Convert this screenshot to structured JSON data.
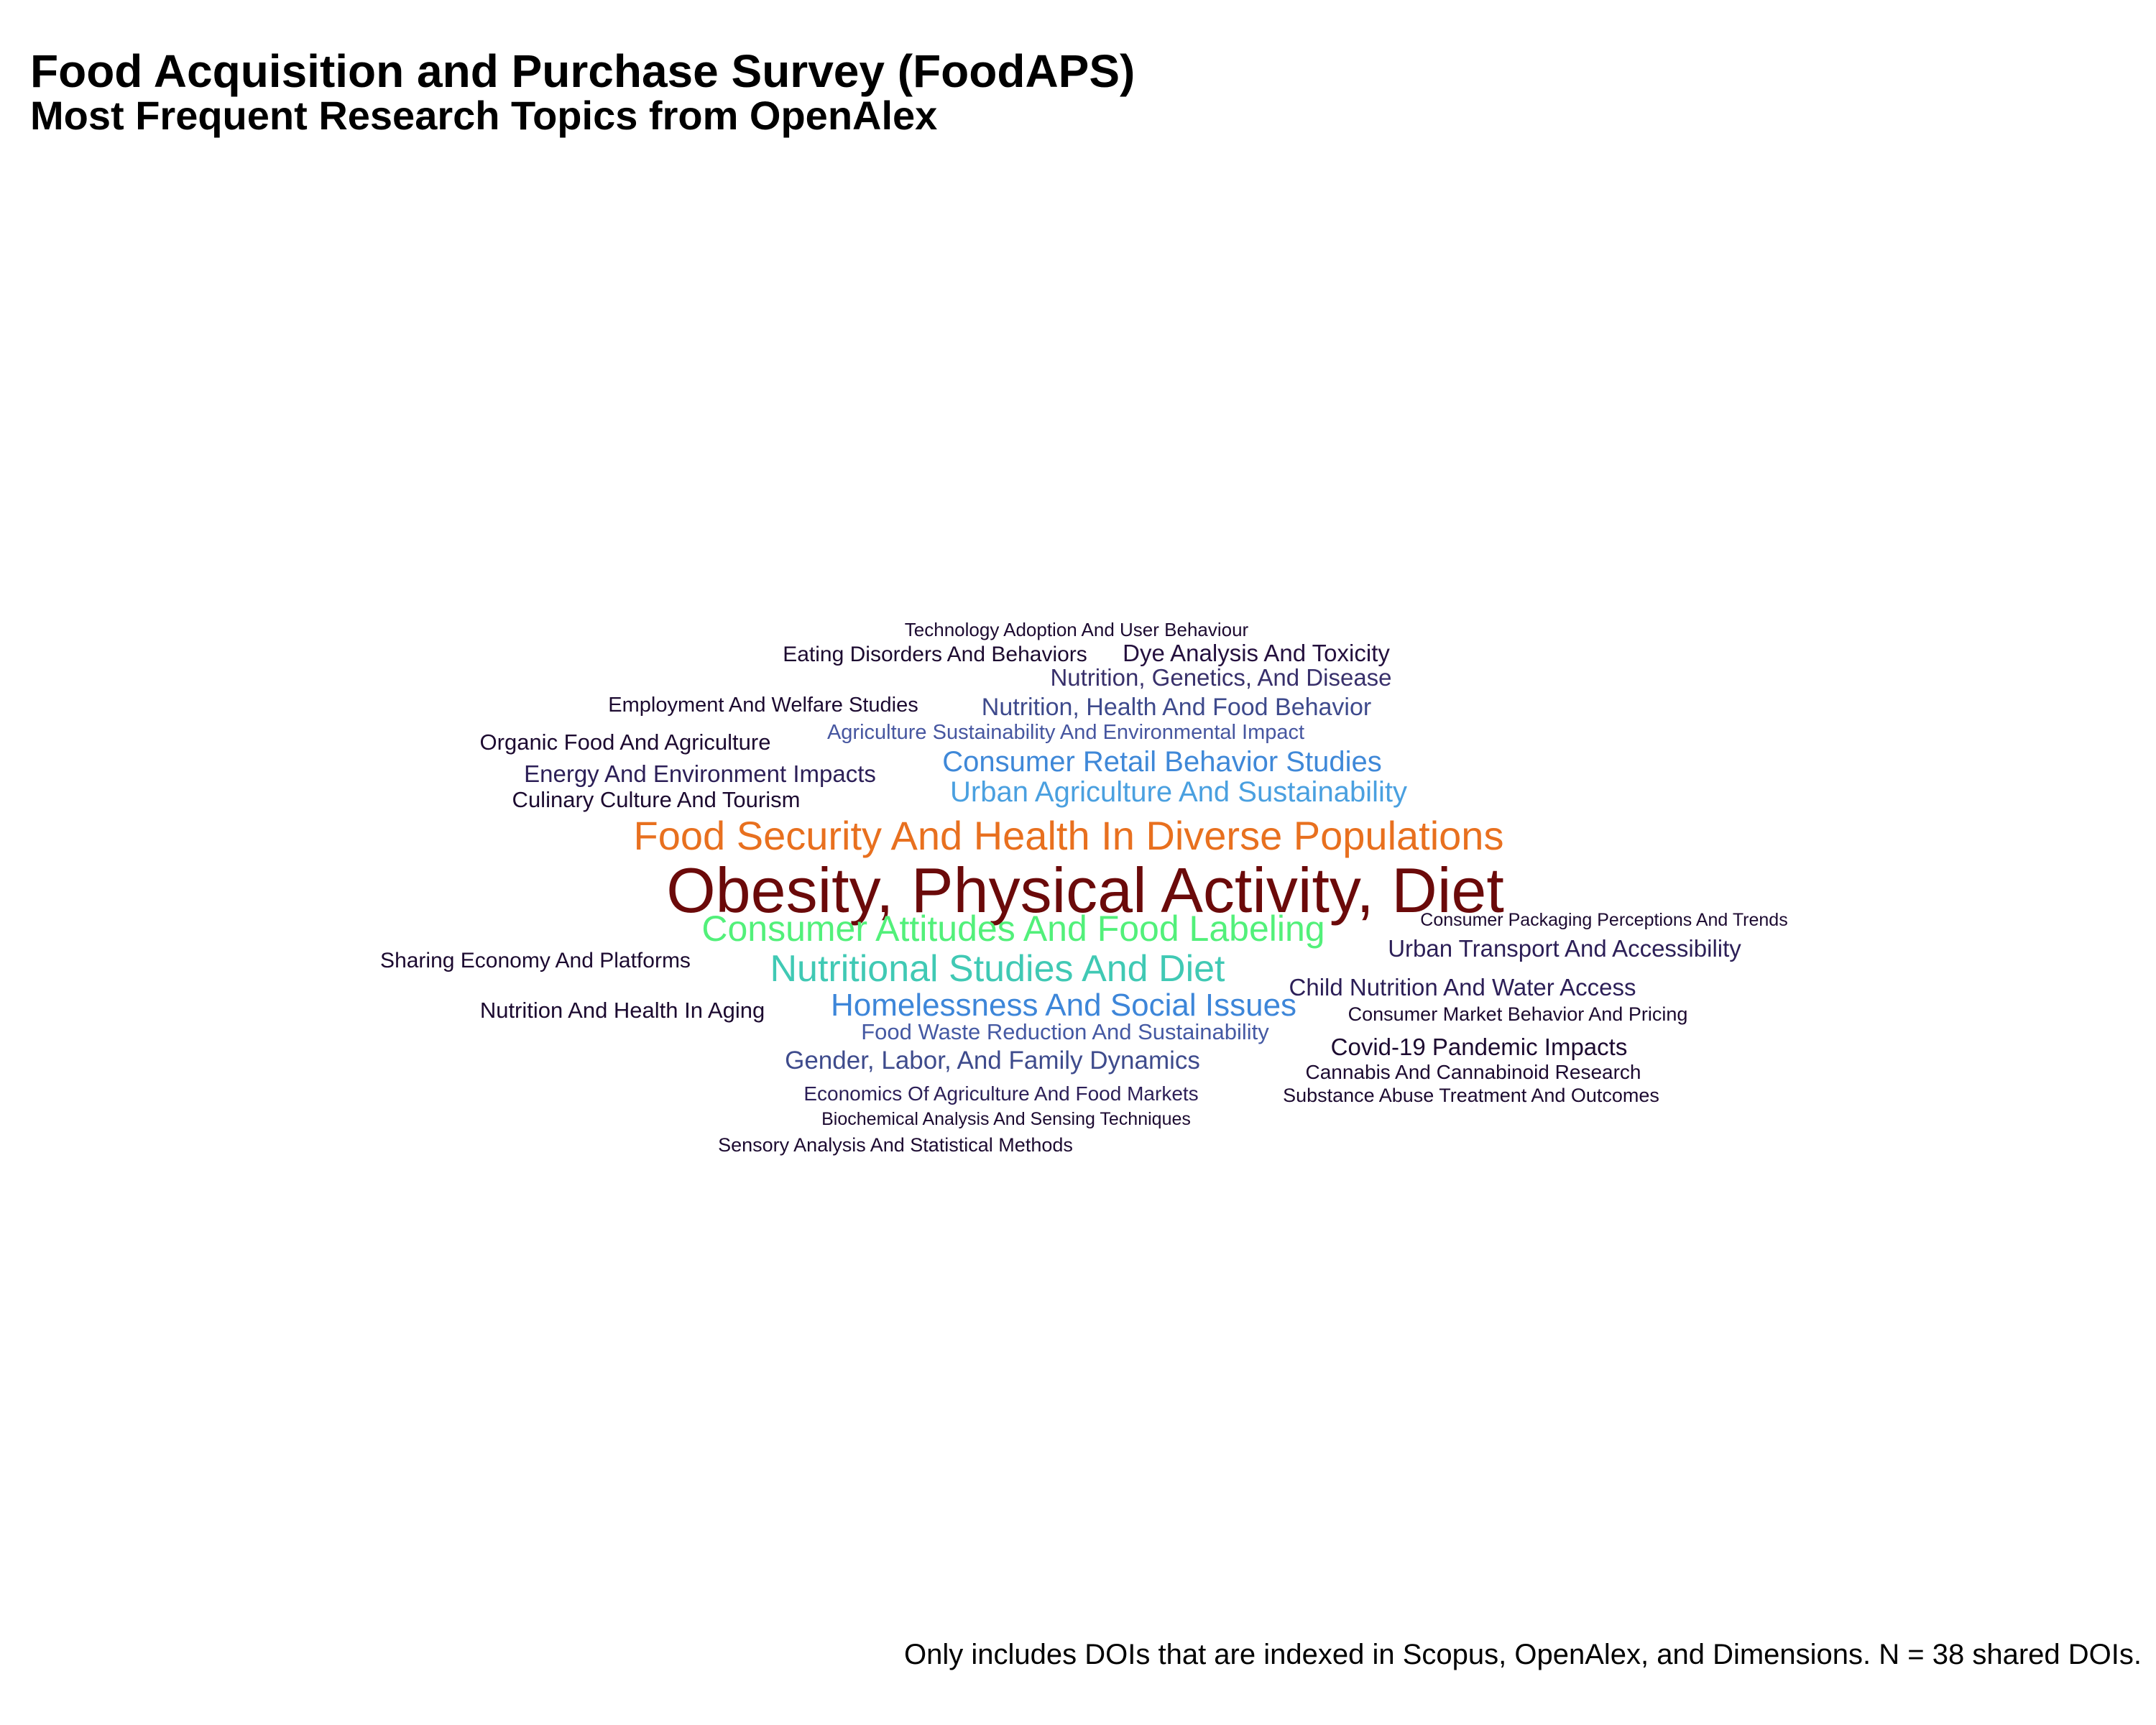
{
  "title": "Food Acquisition and Purchase Survey (FoodAPS)",
  "subtitle": "Most Frequent Research Topics from OpenAlex",
  "caption": "Only includes DOIs that are indexed in Scopus, OpenAlex, and Dimensions. N = 38 shared DOIs.",
  "chart_data": {
    "type": "wordcloud",
    "title": "Food Acquisition and Purchase Survey (FoodAPS)",
    "subtitle": "Most Frequent Research Topics from OpenAlex",
    "words": [
      {
        "text": "Obesity, Physical Activity, Diet",
        "weight": 10,
        "color": "#6b0a0a"
      },
      {
        "text": "Food Security And Health In Diverse Populations",
        "weight": 6,
        "color": "#e8701f"
      },
      {
        "text": "Consumer Attitudes And Food Labeling",
        "weight": 5,
        "color": "#52f07a"
      },
      {
        "text": "Nutritional Studies And Diet",
        "weight": 5,
        "color": "#40c9b4"
      },
      {
        "text": "Homelessness And Social Issues",
        "weight": 4,
        "color": "#3d86d9"
      },
      {
        "text": "Consumer Retail Behavior Studies",
        "weight": 4,
        "color": "#3f88d8"
      },
      {
        "text": "Urban Agriculture And Sustainability",
        "weight": 4,
        "color": "#4aa0e0"
      },
      {
        "text": "Nutrition, Health And Food Behavior",
        "weight": 3,
        "color": "#3e4a8c"
      },
      {
        "text": "Nutrition, Genetics, And Disease",
        "weight": 3,
        "color": "#38306b"
      },
      {
        "text": "Gender, Labor, And Family Dynamics",
        "weight": 3,
        "color": "#3e4b8c"
      },
      {
        "text": "Food Waste Reduction And Sustainability",
        "weight": 3,
        "color": "#4559a3"
      },
      {
        "text": "Agriculture Sustainability And Environmental Impact",
        "weight": 2,
        "color": "#4656a0"
      },
      {
        "text": "Dye Analysis And Toxicity",
        "weight": 3,
        "color": "#24103e"
      },
      {
        "text": "Urban Transport And Accessibility",
        "weight": 3,
        "color": "#2c1f57"
      },
      {
        "text": "Child Nutrition And Water Access",
        "weight": 3,
        "color": "#2c1f57"
      },
      {
        "text": "Covid-19 Pandemic Impacts",
        "weight": 3,
        "color": "#1c0a30"
      },
      {
        "text": "Energy And Environment Impacts",
        "weight": 3,
        "color": "#2c1f57"
      },
      {
        "text": "Culinary Culture And Tourism",
        "weight": 2,
        "color": "#1c0a30"
      },
      {
        "text": "Organic Food And Agriculture",
        "weight": 2,
        "color": "#1c0a30"
      },
      {
        "text": "Nutrition And Health In Aging",
        "weight": 2,
        "color": "#1c0a30"
      },
      {
        "text": "Sharing Economy And Platforms",
        "weight": 2,
        "color": "#1c0a30"
      },
      {
        "text": "Eating Disorders And Behaviors",
        "weight": 2,
        "color": "#1c0a30"
      },
      {
        "text": "Employment And Welfare Studies",
        "weight": 2,
        "color": "#1c0a30"
      },
      {
        "text": "Economics Of Agriculture And Food Markets",
        "weight": 2,
        "color": "#2c1f57"
      },
      {
        "text": "Cannabis And Cannabinoid Research",
        "weight": 2,
        "color": "#1c0a30"
      },
      {
        "text": "Consumer Market Behavior And Pricing",
        "weight": 2,
        "color": "#1c0a30"
      },
      {
        "text": "Technology Adoption And User Behaviour",
        "weight": 1,
        "color": "#1c0a30"
      },
      {
        "text": "Consumer Packaging Perceptions And Trends",
        "weight": 1,
        "color": "#1c0a30"
      },
      {
        "text": "Substance Abuse Treatment And Outcomes",
        "weight": 1,
        "color": "#1c0a30"
      },
      {
        "text": "Biochemical Analysis And Sensing Techniques",
        "weight": 1,
        "color": "#1c0a30"
      },
      {
        "text": "Sensory Analysis And Statistical Methods",
        "weight": 1,
        "color": "#1c0a30"
      }
    ]
  }
}
